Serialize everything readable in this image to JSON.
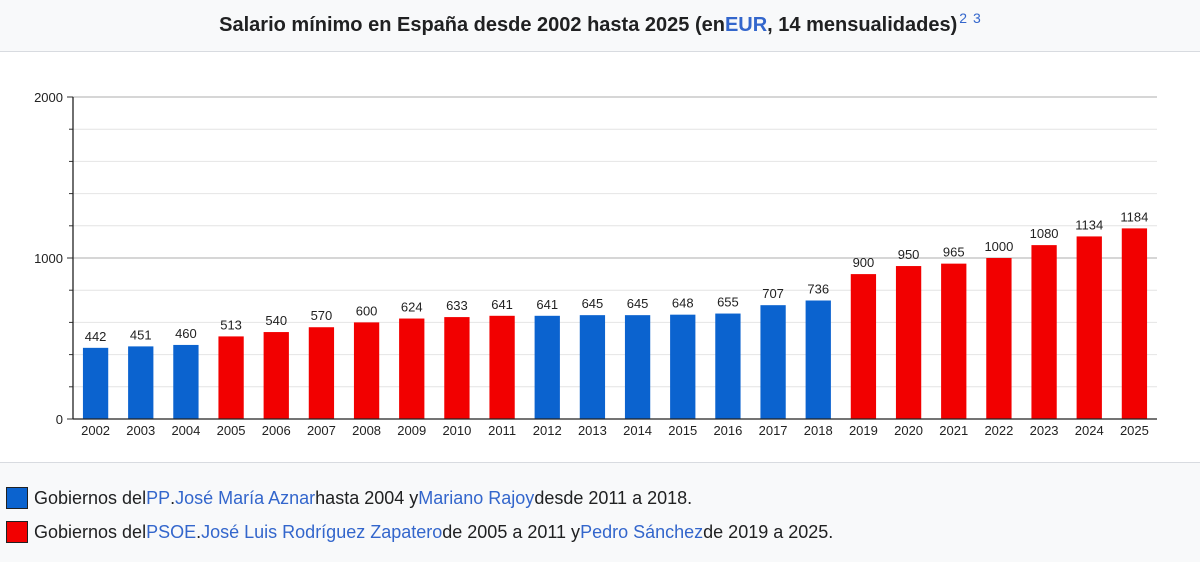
{
  "caption": {
    "title_pre": "Salario mínimo en España desde 2002 hasta 2025 (en ",
    "title_link": "EUR",
    "title_post": ", 14 mensualidades)",
    "refs": [
      "2",
      "3"
    ]
  },
  "colors": {
    "pp": "#0b63cf",
    "psoe": "#f20000",
    "link": "#3366cc"
  },
  "chart_data": {
    "type": "bar",
    "title": "Salario mínimo en España desde 2002 hasta 2025 (en EUR, 14 mensualidades)",
    "xlabel": "",
    "ylabel": "",
    "ylim": [
      0,
      2000
    ],
    "yticks": [
      0,
      1000,
      2000
    ],
    "grid": true,
    "categories": [
      "2002",
      "2003",
      "2004",
      "2005",
      "2006",
      "2007",
      "2008",
      "2009",
      "2010",
      "2011",
      "2012",
      "2013",
      "2014",
      "2015",
      "2016",
      "2017",
      "2018",
      "2019",
      "2020",
      "2021",
      "2022",
      "2023",
      "2024",
      "2025"
    ],
    "values": [
      442,
      451,
      460,
      513,
      540,
      570,
      600,
      624,
      633,
      641,
      641,
      645,
      645,
      648,
      655,
      707,
      736,
      900,
      950,
      965,
      1000,
      1080,
      1134,
      1184
    ],
    "parties": [
      "pp",
      "pp",
      "pp",
      "psoe",
      "psoe",
      "psoe",
      "psoe",
      "psoe",
      "psoe",
      "psoe",
      "pp",
      "pp",
      "pp",
      "pp",
      "pp",
      "pp",
      "pp",
      "psoe",
      "psoe",
      "psoe",
      "psoe",
      "psoe",
      "psoe",
      "psoe"
    ]
  },
  "legend": {
    "pp": {
      "t1": "Gobiernos del ",
      "party": "PP",
      "t2": ". ",
      "leader1": "José María Aznar",
      "t3": " hasta 2004 y ",
      "leader2": "Mariano Rajoy",
      "t4": " desde 2011 a 2018."
    },
    "psoe": {
      "t1": "Gobiernos del ",
      "party": "PSOE",
      "t2": ". ",
      "leader1": "José Luis Rodríguez Zapatero",
      "t3": " de 2005 a 2011 y ",
      "leader2": "Pedro Sánchez",
      "t4": " de 2019 a 2025."
    }
  }
}
